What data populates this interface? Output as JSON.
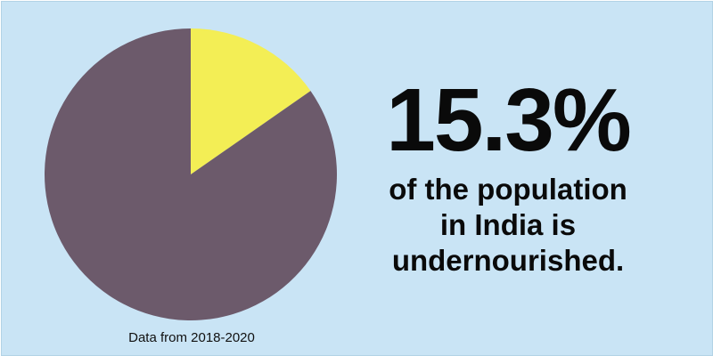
{
  "chart_data": {
    "type": "pie",
    "slices": [
      {
        "value": 15.3,
        "color": "#f3ee55"
      },
      {
        "value": 84.7,
        "color": "#6c5a6b"
      }
    ],
    "caption": "Data from 2018-2020"
  },
  "stat": {
    "value": "15.3%",
    "lines": [
      "of the population",
      "in India is",
      "undernourished."
    ]
  }
}
